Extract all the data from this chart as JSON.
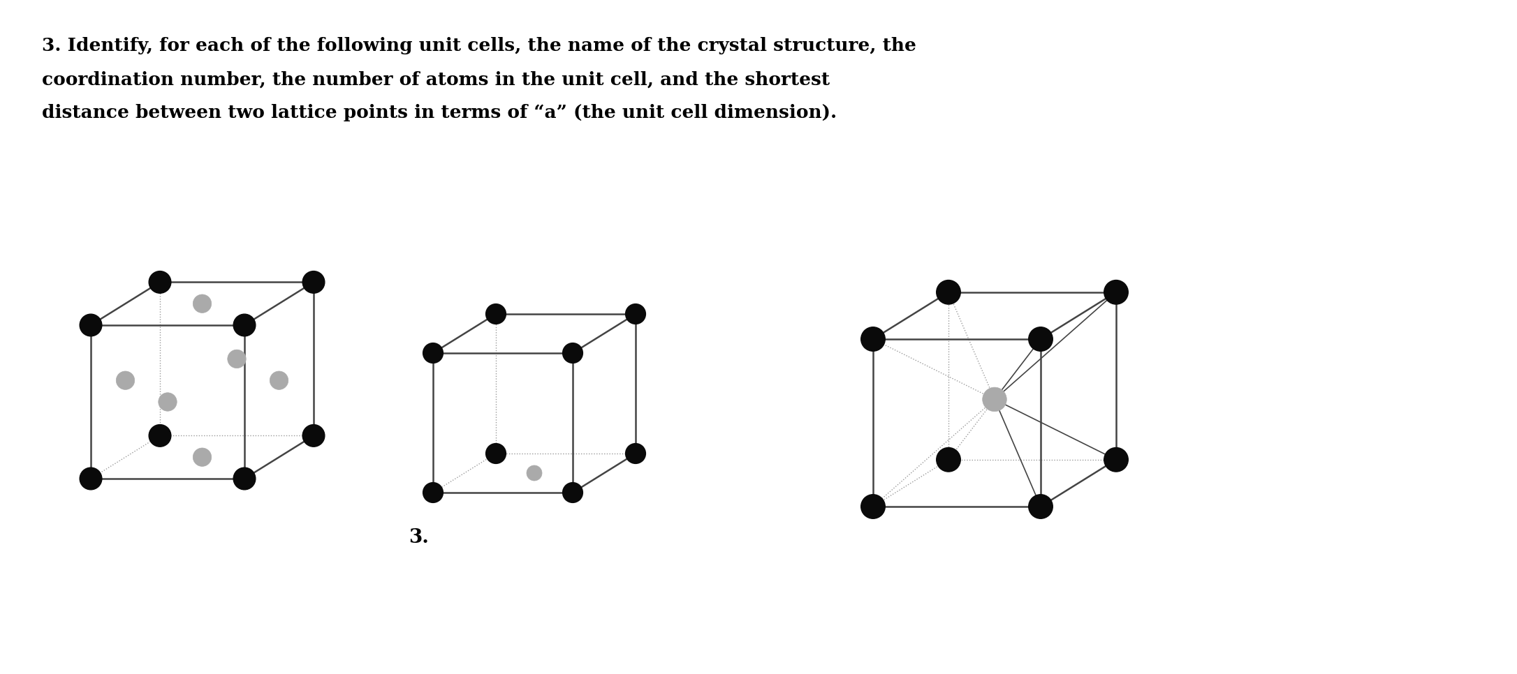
{
  "title_lines": [
    "3. Identify, for each of the following unit cells, the name of the crystal structure, the",
    "coordination number, the number of atoms in the unit cell, and the shortest",
    "distance between two lattice points in terms of “a” (the unit cell dimension)."
  ],
  "label_3": "3.",
  "bg_color": "#ffffff",
  "text_color": "#000000",
  "atom_color_dark": "#0a0a0a",
  "atom_color_gray": "#aaaaaa",
  "edge_color_solid": "#444444",
  "edge_color_dotted": "#999999",
  "title_fontsize": 19,
  "label_fontsize": 20,
  "figsize": [
    21.72,
    9.66
  ],
  "dpi": 100
}
